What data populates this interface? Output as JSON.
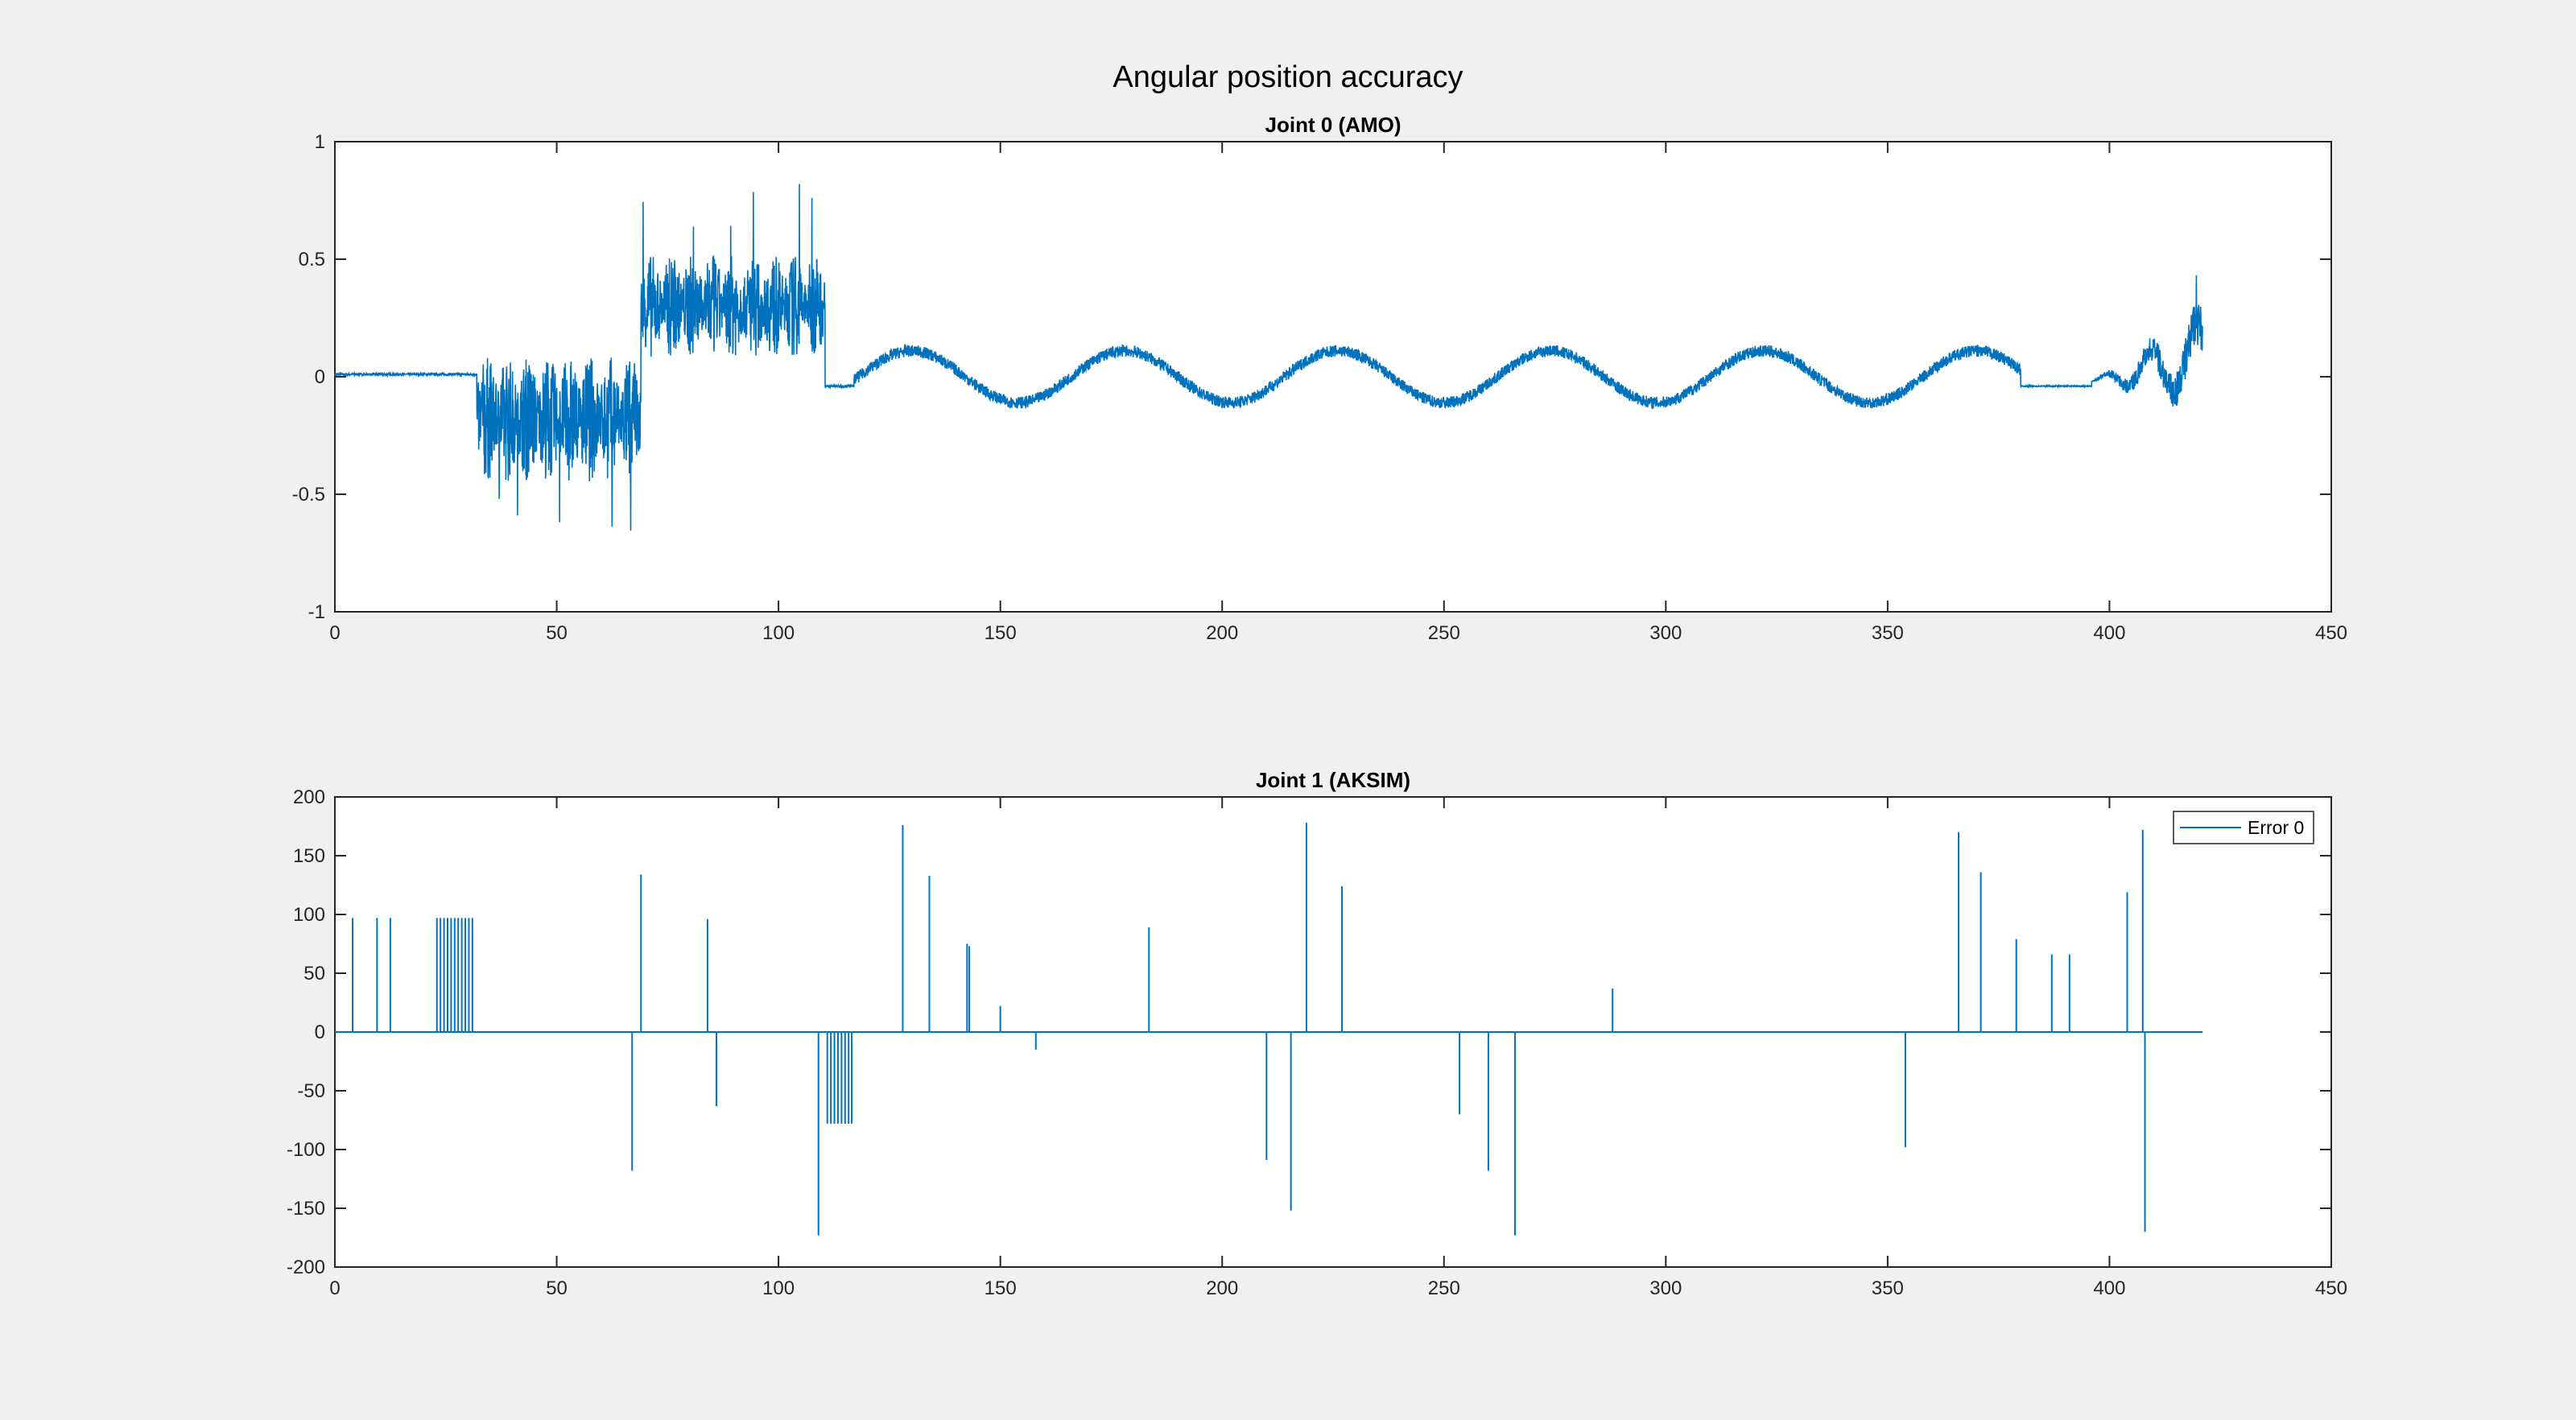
{
  "figure_title": "Angular position accuracy",
  "colors": {
    "background": "#f0f0f0",
    "axes_face": "#ffffff",
    "axis_line": "#262626",
    "series": "#0072bd"
  },
  "chart_data": [
    {
      "type": "line",
      "title": "Joint 0 (AMO)",
      "xlabel": "",
      "ylabel": "",
      "xlim": [
        0,
        450
      ],
      "ylim": [
        -1,
        1
      ],
      "xticks": [
        0,
        50,
        100,
        150,
        200,
        250,
        300,
        350,
        400,
        450
      ],
      "yticks": [
        -1,
        -0.5,
        0,
        0.5,
        1
      ],
      "xtick_labels": [
        "0",
        "50",
        "100",
        "150",
        "200",
        "250",
        "300",
        "350",
        "400",
        "450"
      ],
      "ytick_labels": [
        "-1",
        "-0.5",
        "0",
        "0.5",
        "1"
      ],
      "grid": false,
      "series": [
        {
          "color": "#0072bd",
          "description_segments": [
            {
              "x": [
                0,
                32
              ],
              "pattern": "flat",
              "center": 0.01,
              "amp": 0.01
            },
            {
              "x": [
                32,
                69
              ],
              "pattern": "dense-oscillation",
              "center": -0.18,
              "amp": 0.27,
              "cycles": 8,
              "spike_min": -0.8
            },
            {
              "x": [
                69,
                110.5
              ],
              "pattern": "dense-oscillation",
              "center": 0.3,
              "amp": 0.22,
              "cycles": 9,
              "spike_max": 0.87
            },
            {
              "x": [
                110.5,
                117
              ],
              "pattern": "flat",
              "center": -0.04,
              "amp": 0.01
            },
            {
              "x": [
                117,
                162
              ],
              "pattern": "sine",
              "center": 0.0,
              "amp": 0.11,
              "period": 48
            },
            {
              "x": [
                162,
                380
              ],
              "pattern": "sine",
              "center": 0.0,
              "amp": 0.11,
              "period": 48
            },
            {
              "x": [
                380,
                396
              ],
              "pattern": "flat",
              "center": -0.04,
              "amp": 0.005
            },
            {
              "x": [
                396,
                421
              ],
              "pattern": "growing-oscillation",
              "center": 0.1,
              "amp": 0.2,
              "spike_max": 0.45
            }
          ]
        }
      ]
    },
    {
      "type": "line",
      "title": "Joint 1 (AKSIM)",
      "xlabel": "",
      "ylabel": "",
      "xlim": [
        0,
        450
      ],
      "ylim": [
        -200,
        200
      ],
      "xticks": [
        0,
        50,
        100,
        150,
        200,
        250,
        300,
        350,
        400,
        450
      ],
      "yticks": [
        -200,
        -150,
        -100,
        -50,
        0,
        50,
        100,
        150,
        200
      ],
      "xtick_labels": [
        "0",
        "50",
        "100",
        "150",
        "200",
        "250",
        "300",
        "350",
        "400",
        "450"
      ],
      "ytick_labels": [
        "-200",
        "-150",
        "-100",
        "-50",
        "0",
        "50",
        "100",
        "150",
        "200"
      ],
      "grid": false,
      "legend": {
        "placement": "top-right",
        "entries": [
          "Error 0"
        ]
      },
      "series": [
        {
          "name": "Error 0",
          "color": "#0072bd",
          "baseline": 0,
          "x_end": 421,
          "spikes": [
            [
              4,
              97
            ],
            [
              9.5,
              97
            ],
            [
              12.5,
              97
            ],
            [
              23,
              97
            ],
            [
              23.8,
              97
            ],
            [
              24.6,
              97
            ],
            [
              25.4,
              97
            ],
            [
              26.2,
              97
            ],
            [
              27.0,
              97
            ],
            [
              27.8,
              97
            ],
            [
              28.6,
              97
            ],
            [
              29.4,
              97
            ],
            [
              30.2,
              97
            ],
            [
              31.0,
              97
            ],
            [
              67,
              -118
            ],
            [
              69,
              134
            ],
            [
              84,
              96
            ],
            [
              86,
              -63
            ],
            [
              109,
              -173
            ],
            [
              111,
              -78
            ],
            [
              111.8,
              -78
            ],
            [
              112.6,
              -78
            ],
            [
              113.4,
              -78
            ],
            [
              114.2,
              -78
            ],
            [
              115.0,
              -78
            ],
            [
              115.8,
              -78
            ],
            [
              116.5,
              -78
            ],
            [
              128,
              176
            ],
            [
              134,
              133
            ],
            [
              142.5,
              75
            ],
            [
              143,
              73
            ],
            [
              150,
              22
            ],
            [
              158,
              -15
            ],
            [
              183.5,
              89
            ],
            [
              210,
              -109
            ],
            [
              215.5,
              -152
            ],
            [
              219,
              178
            ],
            [
              227,
              124
            ],
            [
              253.5,
              -70
            ],
            [
              260,
              -118
            ],
            [
              266,
              -173
            ],
            [
              288,
              37
            ],
            [
              354,
              -98
            ],
            [
              366,
              170
            ],
            [
              371,
              136
            ],
            [
              379,
              79
            ],
            [
              387,
              66
            ],
            [
              391,
              66
            ],
            [
              404,
              119
            ],
            [
              407.5,
              172
            ],
            [
              408,
              -170
            ]
          ]
        }
      ]
    }
  ]
}
